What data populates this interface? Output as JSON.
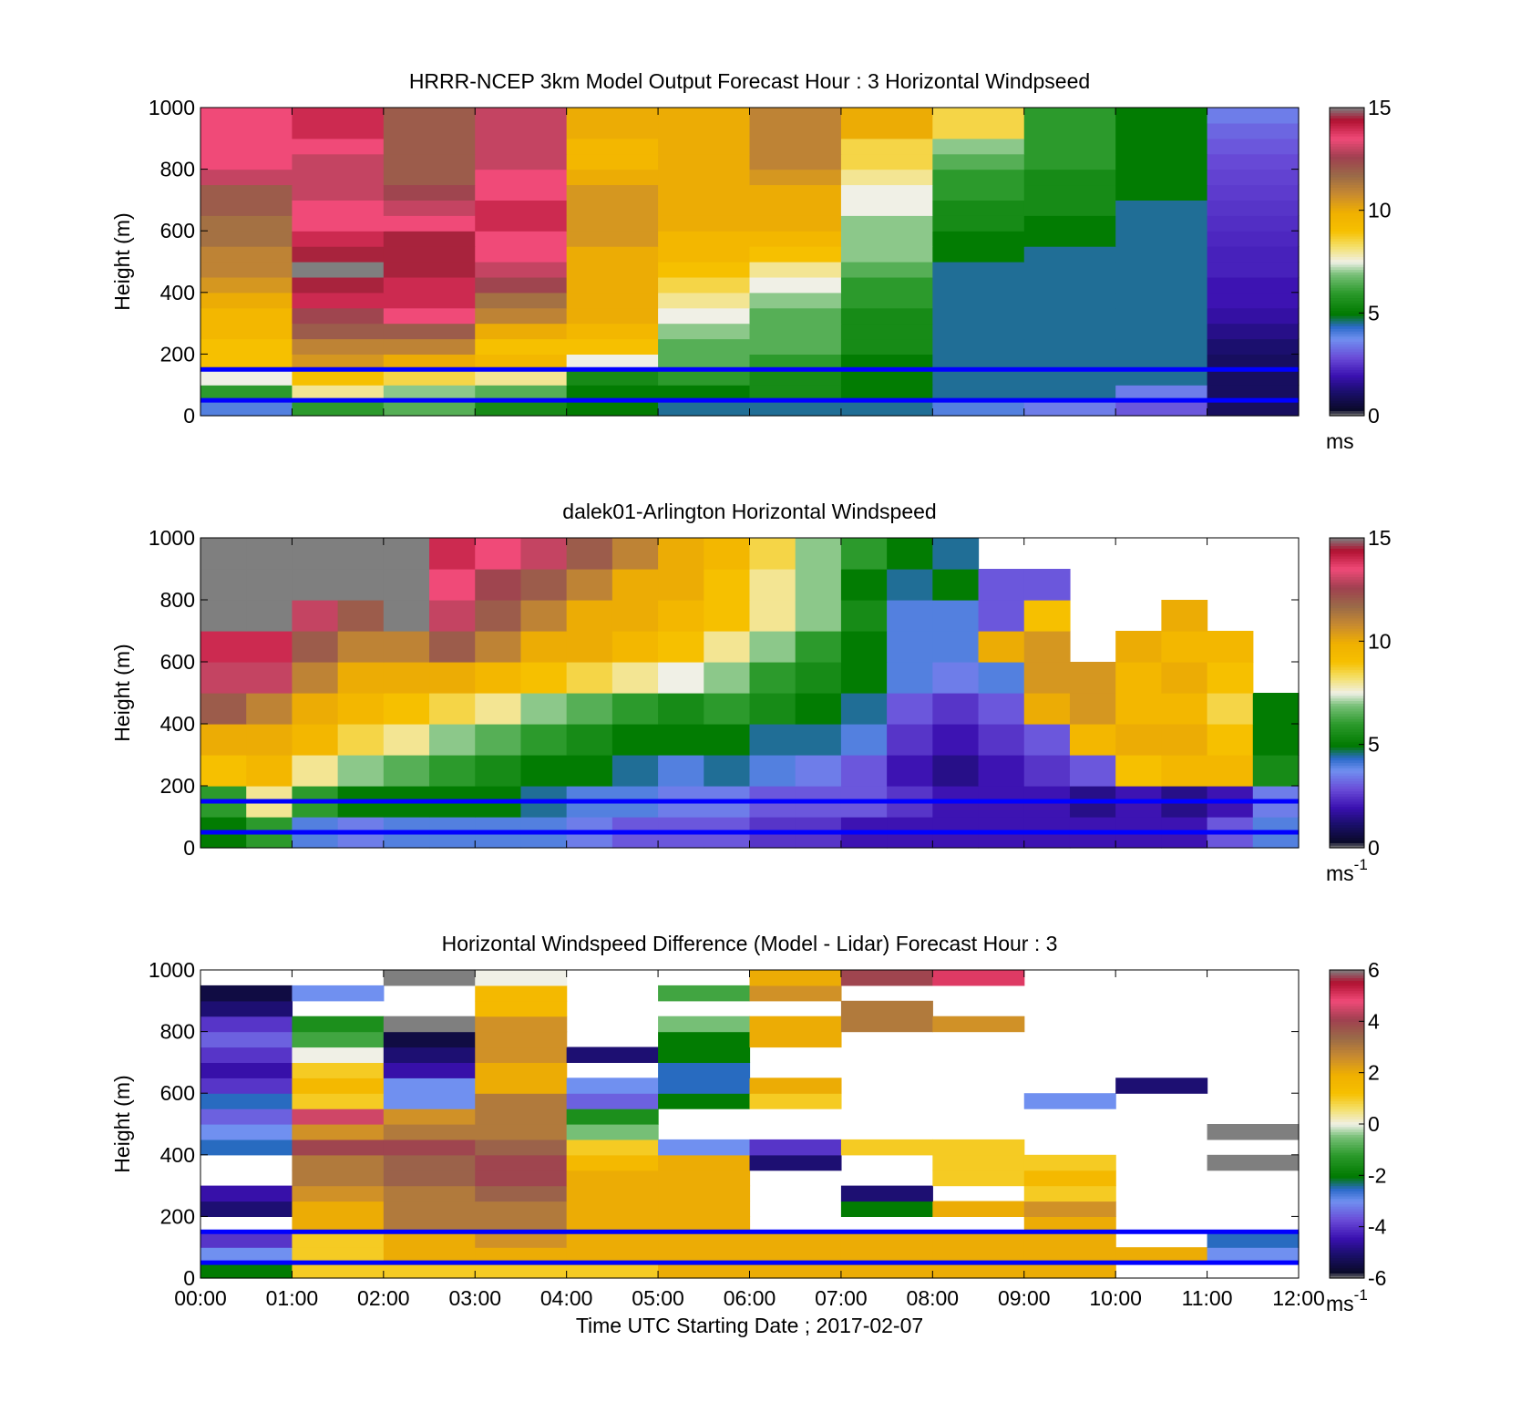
{
  "chart_data": [
    {
      "type": "heatmap",
      "title": "HRRR-NCEP 3km Model Output   Forecast Hour : 3 Horizontal Windpseed",
      "ylabel": "Height (m)",
      "xlabel": "",
      "ylim": [
        0,
        1000
      ],
      "xlim": [
        0,
        12
      ],
      "yticks": [
        "0",
        "200",
        "400",
        "600",
        "800",
        "1000"
      ],
      "xticks": [],
      "colorbar": {
        "min": 0,
        "max": 15,
        "ticks": [
          "0",
          "5",
          "10",
          "15"
        ],
        "unit": "ms",
        "unit_sup": ""
      },
      "time_bins_hours": [
        0,
        1,
        2,
        3,
        4,
        5,
        6,
        7,
        8,
        9,
        10,
        11
      ],
      "height_levels_m": [
        25,
        75,
        125,
        175,
        225,
        275,
        325,
        375,
        425,
        475,
        525,
        575,
        625,
        675,
        725,
        775,
        825,
        875,
        925,
        975
      ],
      "values": [
        [
          4.0,
          6.0,
          6.5,
          5.5,
          5.0,
          4.5,
          4.5,
          4.5,
          4.0,
          3.5,
          3.0,
          1.0
        ],
        [
          6.0,
          8.0,
          7.0,
          6.5,
          5.0,
          5.0,
          5.5,
          5.0,
          4.5,
          4.5,
          3.5,
          1.0
        ],
        [
          7.5,
          9.0,
          8.5,
          8.0,
          5.5,
          6.0,
          5.5,
          5.0,
          4.5,
          4.5,
          4.5,
          1.0
        ],
        [
          9.0,
          10.5,
          10.0,
          9.5,
          7.5,
          6.5,
          6.0,
          5.0,
          4.5,
          4.5,
          4.5,
          1.0
        ],
        [
          9.0,
          11.0,
          11.0,
          9.0,
          9.0,
          6.5,
          6.5,
          5.5,
          4.5,
          4.5,
          4.5,
          1.2
        ],
        [
          9.5,
          12.0,
          12.0,
          10.0,
          9.5,
          7.0,
          6.5,
          5.5,
          4.5,
          4.5,
          4.5,
          1.5
        ],
        [
          9.5,
          12.5,
          13.5,
          11.0,
          10.0,
          7.5,
          6.5,
          5.5,
          4.5,
          4.5,
          4.5,
          1.8
        ],
        [
          10.0,
          14.0,
          14.0,
          11.5,
          10.0,
          8.0,
          7.0,
          6.0,
          4.5,
          4.5,
          4.5,
          2.0
        ],
        [
          10.5,
          14.5,
          14.0,
          12.5,
          10.0,
          8.5,
          7.5,
          6.0,
          4.5,
          4.5,
          4.5,
          2.0
        ],
        [
          11.0,
          15.0,
          14.5,
          13.0,
          10.0,
          9.0,
          8.0,
          6.5,
          4.5,
          4.5,
          4.5,
          2.2
        ],
        [
          11.0,
          14.5,
          14.5,
          13.5,
          10.0,
          9.5,
          9.0,
          7.0,
          5.0,
          4.5,
          4.5,
          2.2
        ],
        [
          11.5,
          14.0,
          14.5,
          13.5,
          10.5,
          9.5,
          9.5,
          7.0,
          5.0,
          5.0,
          4.5,
          2.3
        ],
        [
          11.5,
          13.5,
          13.5,
          14.0,
          10.5,
          10.0,
          10.0,
          7.0,
          5.5,
          5.0,
          4.5,
          2.4
        ],
        [
          12.0,
          13.5,
          13.0,
          14.0,
          10.5,
          10.0,
          10.0,
          7.5,
          5.5,
          5.5,
          4.5,
          2.5
        ],
        [
          12.0,
          13.0,
          12.5,
          13.5,
          10.5,
          10.0,
          10.0,
          7.5,
          6.0,
          5.5,
          5.0,
          2.6
        ],
        [
          13.0,
          13.0,
          12.0,
          13.5,
          10.0,
          10.0,
          10.5,
          8.0,
          6.0,
          5.5,
          5.0,
          2.7
        ],
        [
          13.5,
          13.0,
          12.0,
          13.0,
          9.5,
          10.0,
          11.0,
          8.5,
          6.5,
          6.0,
          5.0,
          2.8
        ],
        [
          13.5,
          13.5,
          12.0,
          13.0,
          9.5,
          10.0,
          11.0,
          8.5,
          7.0,
          6.0,
          5.0,
          3.0
        ],
        [
          13.5,
          14.0,
          12.0,
          13.0,
          10.0,
          10.0,
          11.0,
          10.0,
          8.5,
          6.0,
          5.0,
          3.2
        ],
        [
          13.5,
          14.0,
          12.0,
          13.0,
          10.0,
          10.0,
          11.0,
          10.0,
          8.5,
          6.0,
          5.0,
          3.5
        ]
      ],
      "reference_lines_m": [
        50,
        150
      ]
    },
    {
      "type": "heatmap",
      "title": "dalek01-Arlington  Horizontal Windspeed",
      "ylabel": "Height (m)",
      "xlabel": "",
      "ylim": [
        0,
        1000
      ],
      "xlim": [
        0,
        12
      ],
      "yticks": [
        "0",
        "200",
        "400",
        "600",
        "800",
        "1000"
      ],
      "xticks": [],
      "colorbar": {
        "min": 0,
        "max": 15,
        "ticks": [
          "0",
          "5",
          "10",
          "15"
        ],
        "unit": "ms",
        "unit_sup": "-1"
      },
      "time_bins_hours": [
        0,
        0.5,
        1,
        1.5,
        2,
        2.5,
        3,
        3.5,
        4,
        4.5,
        5,
        5.5,
        6,
        6.5,
        7,
        7.5,
        8,
        8.5,
        9,
        9.5,
        10,
        10.5,
        11,
        11.5
      ],
      "height_levels_m": [
        50,
        150,
        250,
        350,
        450,
        550,
        650,
        750,
        850,
        950
      ],
      "values": [
        [
          5.0,
          6.0,
          4.0,
          3.5,
          4.0,
          4.0,
          4.0,
          4.0,
          3.5,
          3.0,
          3.0,
          3.0,
          2.5,
          2.5,
          2.0,
          2.0,
          2.0,
          2.0,
          2.0,
          2.0,
          2.0,
          2.0,
          3.0,
          4.0
        ],
        [
          6.0,
          8.0,
          6.0,
          5.0,
          5.0,
          5.0,
          5.0,
          4.5,
          4.0,
          4.0,
          3.5,
          3.5,
          3.0,
          3.0,
          3.0,
          2.5,
          2.0,
          2.0,
          2.0,
          1.5,
          2.0,
          1.5,
          2.0,
          3.5
        ],
        [
          9.0,
          9.5,
          8.0,
          7.0,
          6.5,
          6.0,
          5.5,
          5.0,
          5.0,
          4.5,
          4.0,
          4.5,
          4.0,
          3.5,
          3.0,
          2.0,
          1.5,
          2.0,
          2.5,
          3.0,
          9.0,
          9.5,
          9.5,
          5.5
        ],
        [
          10.0,
          10.0,
          9.5,
          8.5,
          8.0,
          7.0,
          6.5,
          6.0,
          5.5,
          5.0,
          5.0,
          5.0,
          4.5,
          4.5,
          4.0,
          2.5,
          2.0,
          2.5,
          3.0,
          9.5,
          10.0,
          10.0,
          9.0,
          5.0
        ],
        [
          12.0,
          11.0,
          10.0,
          9.5,
          9.0,
          8.5,
          8.0,
          7.0,
          6.5,
          6.0,
          5.5,
          6.0,
          5.5,
          5.0,
          4.5,
          3.0,
          2.5,
          3.0,
          10.0,
          10.5,
          9.5,
          9.5,
          8.5,
          5.0
        ],
        [
          13.0,
          13.0,
          11.0,
          10.0,
          10.0,
          10.0,
          9.5,
          9.0,
          8.5,
          8.0,
          7.5,
          7.0,
          6.0,
          5.5,
          5.0,
          4.0,
          3.5,
          4.0,
          10.5,
          10.5,
          9.5,
          10.0,
          9.0,
          null
        ],
        [
          14.0,
          14.0,
          12.0,
          11.0,
          11.0,
          12.0,
          11.0,
          10.0,
          10.0,
          9.5,
          9.0,
          8.0,
          7.0,
          6.0,
          5.0,
          4.0,
          4.0,
          10.0,
          10.5,
          null,
          10.0,
          9.5,
          9.5,
          null
        ],
        [
          15.5,
          15.5,
          13.0,
          12.0,
          15.5,
          13.0,
          12.0,
          11.0,
          10.0,
          10.0,
          9.5,
          9.0,
          8.0,
          7.0,
          5.5,
          4.0,
          4.0,
          3.0,
          9.0,
          null,
          null,
          10.0,
          null,
          null
        ],
        [
          15.5,
          15.5,
          15.5,
          15.5,
          15.5,
          13.5,
          12.5,
          12.0,
          11.0,
          10.0,
          10.0,
          9.0,
          8.0,
          7.0,
          5.0,
          4.5,
          5.0,
          3.0,
          3.0,
          null,
          null,
          null,
          null,
          null
        ],
        [
          15.5,
          15.5,
          15.5,
          15.5,
          15.5,
          14.0,
          13.5,
          13.0,
          12.0,
          11.0,
          10.0,
          9.5,
          8.5,
          7.0,
          6.0,
          5.0,
          4.5,
          null,
          null,
          null,
          null,
          null,
          null,
          null
        ]
      ],
      "reference_lines_m": [
        50,
        150
      ]
    },
    {
      "type": "heatmap",
      "title": "Horizontal Windspeed Difference (Model - Lidar) Forecast Hour : 3",
      "ylabel": "Height (m)",
      "xlabel": "Time UTC  Starting Date ; 2017-02-07",
      "ylim": [
        0,
        1000
      ],
      "xlim": [
        0,
        12
      ],
      "yticks": [
        "0",
        "200",
        "400",
        "600",
        "800",
        "1000"
      ],
      "xticks": [
        "00:00",
        "01:00",
        "02:00",
        "03:00",
        "04:00",
        "05:00",
        "06:00",
        "07:00",
        "08:00",
        "09:00",
        "10:00",
        "11:00",
        "12:00"
      ],
      "colorbar": {
        "min": -6,
        "max": 6,
        "ticks": [
          "-6",
          "-4",
          "-2",
          "0",
          "2",
          "4",
          "6"
        ],
        "unit": "ms",
        "unit_sup": "-1"
      },
      "time_bins_hours": [
        0,
        1,
        2,
        3,
        4,
        5,
        6,
        7,
        8,
        9,
        10,
        11
      ],
      "height_levels_m": [
        25,
        75,
        125,
        175,
        225,
        275,
        325,
        375,
        425,
        475,
        525,
        575,
        625,
        675,
        725,
        775,
        825,
        875,
        925,
        975
      ],
      "values": [
        [
          -2.0,
          1.0,
          1.0,
          1.0,
          1.0,
          2.0,
          2.0,
          2.0,
          2.0,
          2.0,
          null,
          null
        ],
        [
          -3.0,
          1.0,
          2.0,
          2.0,
          2.0,
          2.0,
          2.0,
          2.0,
          2.0,
          2.0,
          2.0,
          -3.0
        ],
        [
          -4.0,
          1.0,
          2.0,
          2.5,
          2.0,
          2.0,
          2.0,
          2.0,
          2.0,
          2.0,
          null,
          -2.5
        ],
        [
          null,
          2.0,
          3.0,
          3.0,
          2.0,
          2.0,
          null,
          null,
          null,
          2.0,
          null,
          null
        ],
        [
          -5.0,
          2.0,
          3.0,
          3.0,
          2.0,
          2.0,
          null,
          -2.0,
          2.0,
          2.5,
          null,
          null
        ],
        [
          -4.5,
          2.5,
          3.0,
          3.5,
          2.0,
          2.0,
          null,
          -5.0,
          null,
          1.0,
          null,
          null
        ],
        [
          null,
          3.0,
          3.5,
          4.0,
          2.0,
          2.0,
          null,
          null,
          1.0,
          1.5,
          null,
          null
        ],
        [
          null,
          3.0,
          3.5,
          4.0,
          1.5,
          2.0,
          -5.0,
          null,
          1.0,
          1.0,
          null,
          -6.0
        ],
        [
          -2.5,
          4.0,
          4.0,
          3.5,
          1.0,
          -3.0,
          -4.0,
          1.0,
          1.0,
          null,
          null,
          null
        ],
        [
          -3.0,
          2.5,
          3.0,
          3.0,
          -0.5,
          null,
          null,
          null,
          null,
          null,
          null,
          -6.0
        ],
        [
          -3.5,
          4.5,
          2.5,
          3.0,
          -1.5,
          null,
          null,
          null,
          null,
          null,
          null,
          null
        ],
        [
          -2.5,
          1.0,
          -3.0,
          3.0,
          -3.5,
          -2.0,
          1.0,
          null,
          null,
          -3.0,
          null,
          null
        ],
        [
          -4.0,
          1.5,
          -3.0,
          2.0,
          -3.0,
          -2.5,
          2.0,
          null,
          null,
          null,
          -5.0,
          null
        ],
        [
          -4.5,
          1.0,
          -4.5,
          2.0,
          null,
          -2.5,
          null,
          null,
          null,
          null,
          null,
          null
        ],
        [
          -4.0,
          0.0,
          -5.0,
          2.5,
          -5.0,
          -2.0,
          null,
          null,
          null,
          null,
          null,
          null
        ],
        [
          -3.5,
          -1.0,
          -5.5,
          2.5,
          null,
          -2.0,
          2.0,
          null,
          null,
          null,
          null,
          null
        ],
        [
          -4.0,
          -1.5,
          -6.0,
          2.5,
          null,
          -0.5,
          2.0,
          3.0,
          2.5,
          null,
          null,
          null
        ],
        [
          -5.0,
          null,
          null,
          1.5,
          null,
          null,
          null,
          3.0,
          null,
          null,
          null,
          null
        ],
        [
          -5.5,
          -3.0,
          null,
          1.5,
          null,
          -1.0,
          2.5,
          null,
          null,
          null,
          null,
          null
        ],
        [
          null,
          null,
          -6.0,
          0.0,
          null,
          null,
          2.0,
          4.0,
          5.0,
          null,
          null,
          null
        ]
      ],
      "reference_lines_m": [
        50,
        150
      ]
    }
  ]
}
